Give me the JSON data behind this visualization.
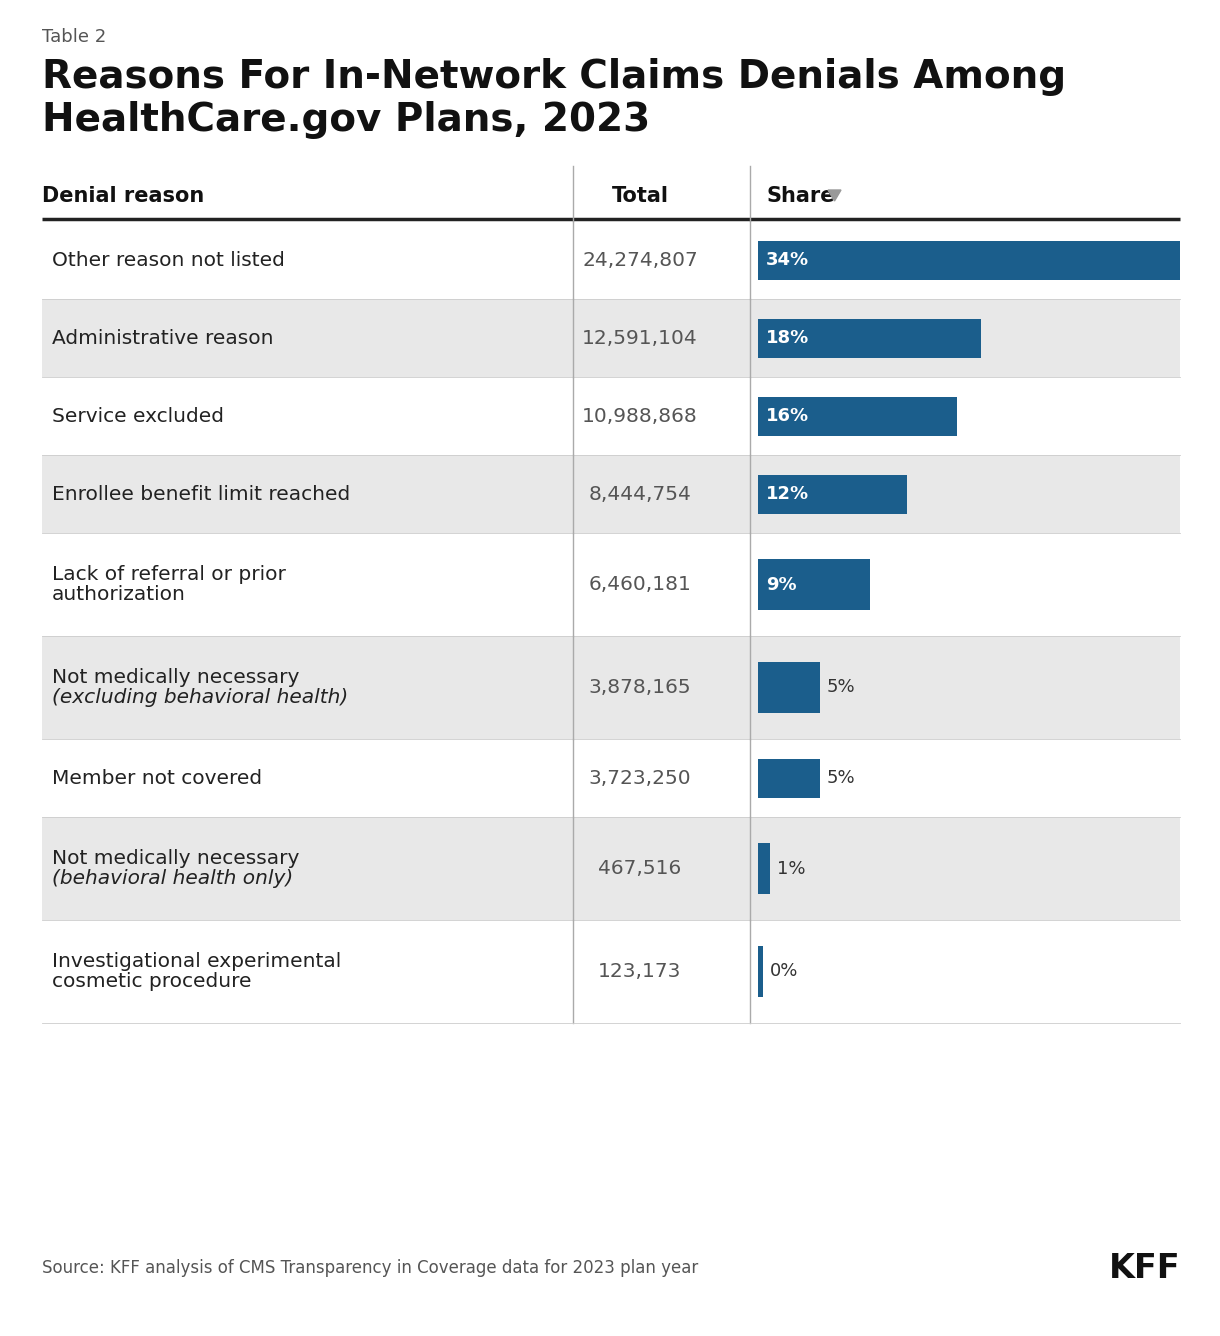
{
  "table_label": "Table 2",
  "title_line1": "Reasons For In-Network Claims Denials Among",
  "title_line2": "HealthCare.gov Plans, 2023",
  "col_denial": "Denial reason",
  "col_total": "Total",
  "col_share": "Share",
  "source": "Source: KFF analysis of CMS Transparency in Coverage data for 2023 plan year",
  "kff_label": "KFF",
  "rows": [
    {
      "label_lines": [
        "Other reason not listed"
      ],
      "italic_lines": [
        false
      ],
      "total": "24,274,807",
      "share": 34,
      "share_label": "34%",
      "bg": "#ffffff"
    },
    {
      "label_lines": [
        "Administrative reason"
      ],
      "italic_lines": [
        false
      ],
      "total": "12,591,104",
      "share": 18,
      "share_label": "18%",
      "bg": "#e8e8e8"
    },
    {
      "label_lines": [
        "Service excluded"
      ],
      "italic_lines": [
        false
      ],
      "total": "10,988,868",
      "share": 16,
      "share_label": "16%",
      "bg": "#ffffff"
    },
    {
      "label_lines": [
        "Enrollee benefit limit reached"
      ],
      "italic_lines": [
        false
      ],
      "total": "8,444,754",
      "share": 12,
      "share_label": "12%",
      "bg": "#e8e8e8"
    },
    {
      "label_lines": [
        "Lack of referral or prior",
        "authorization"
      ],
      "italic_lines": [
        false,
        false
      ],
      "total": "6,460,181",
      "share": 9,
      "share_label": "9%",
      "bg": "#ffffff"
    },
    {
      "label_lines": [
        "Not medically necessary",
        "(excluding behavioral health)"
      ],
      "italic_lines": [
        false,
        true
      ],
      "total": "3,878,165",
      "share": 5,
      "share_label": "5%",
      "bg": "#e8e8e8"
    },
    {
      "label_lines": [
        "Member not covered"
      ],
      "italic_lines": [
        false
      ],
      "total": "3,723,250",
      "share": 5,
      "share_label": "5%",
      "bg": "#ffffff"
    },
    {
      "label_lines": [
        "Not medically necessary",
        "(behavioral health only)"
      ],
      "italic_lines": [
        false,
        true
      ],
      "total": "467,516",
      "share": 1,
      "share_label": "1%",
      "bg": "#e8e8e8"
    },
    {
      "label_lines": [
        "Investigational experimental",
        "cosmetic procedure"
      ],
      "italic_lines": [
        false,
        false
      ],
      "total": "123,173",
      "share": 0,
      "share_label": "0%",
      "bg": "#ffffff"
    }
  ],
  "bar_color": "#1b5e8c",
  "text_color_on_bar": "#ffffff",
  "text_color_off_bar": "#333333",
  "divider_color": "#222222",
  "col_divider_color": "#aaaaaa",
  "fig_bg": "#ffffff",
  "title_color": "#111111",
  "label_color": "#222222",
  "total_color": "#555555",
  "source_color": "#555555"
}
